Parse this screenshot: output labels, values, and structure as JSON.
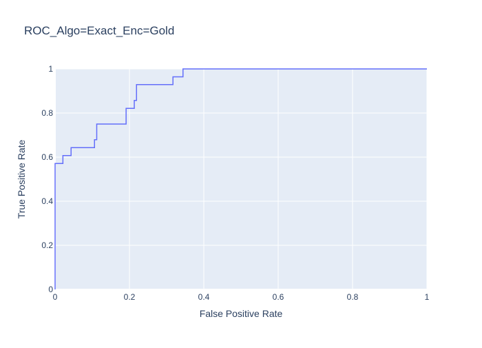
{
  "chart_data": {
    "type": "line",
    "title": "ROC_Algo=Exact_Enc=Gold",
    "xlabel": "False Positive Rate",
    "ylabel": "True Positive Rate",
    "xlim": [
      0,
      1
    ],
    "ylim": [
      0,
      1
    ],
    "x_ticks": [
      "0",
      "0.2",
      "0.4",
      "0.6",
      "0.8",
      "1"
    ],
    "y_ticks": [
      "0",
      "0.2",
      "0.4",
      "0.6",
      "0.8",
      "1"
    ],
    "grid": true,
    "line_shape": "step",
    "series": [
      {
        "color": "#636efa",
        "x": [
          0,
          0,
          0.021,
          0.021,
          0.043,
          0.043,
          0.106,
          0.106,
          0.112,
          0.112,
          0.191,
          0.191,
          0.213,
          0.213,
          0.219,
          0.219,
          0.317,
          0.317,
          0.344,
          0.344,
          1
        ],
        "y": [
          0,
          0.571,
          0.571,
          0.607,
          0.607,
          0.643,
          0.643,
          0.679,
          0.679,
          0.75,
          0.75,
          0.821,
          0.821,
          0.857,
          0.857,
          0.929,
          0.929,
          0.964,
          0.964,
          1,
          1
        ]
      }
    ]
  },
  "colors": {
    "plot_background": "#e5ecf6",
    "grid": "#ffffff",
    "text": "#2a3f5f",
    "line": "#636efa"
  }
}
